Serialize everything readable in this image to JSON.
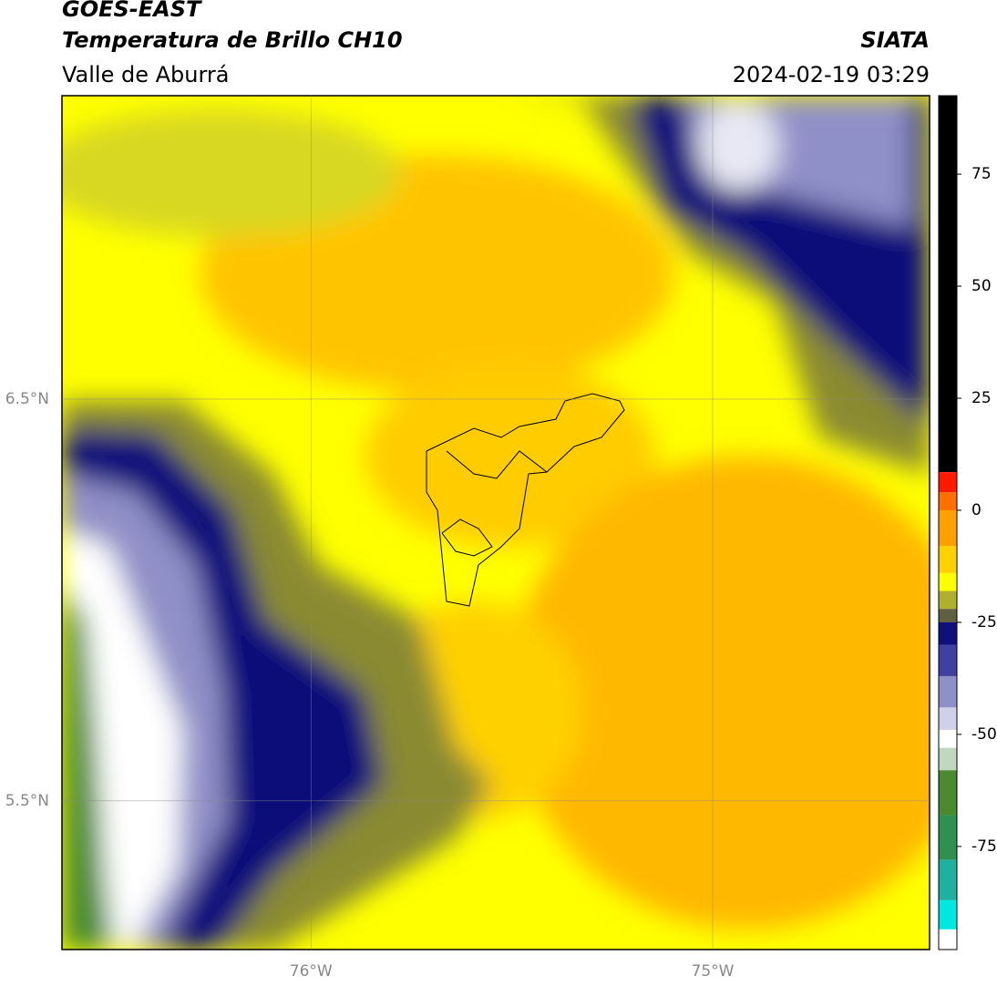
{
  "header": {
    "title": "GOES-EAST",
    "subtitle": "Temperatura de Brillo CH10",
    "region": "Valle de Aburrá",
    "source": "SIATA",
    "datetime": "2024-02-19 03:29"
  },
  "map": {
    "xlim": [
      -76.62,
      -74.46
    ],
    "ylim": [
      5.13,
      7.255
    ],
    "xticks": [
      {
        "value": -76,
        "label": "76°W"
      },
      {
        "value": -75,
        "label": "75°W"
      }
    ],
    "yticks": [
      {
        "value": 6.5,
        "label": "6.5°N"
      },
      {
        "value": 5.5,
        "label": "5.5°N"
      }
    ],
    "grid": true
  },
  "colorbar": {
    "ylim": [
      -98,
      92.5
    ],
    "ticks": [
      75,
      50,
      25,
      0,
      -25,
      -50,
      -75
    ],
    "bounds": [
      8.5,
      4,
      0,
      -8,
      -14,
      -18,
      -22,
      -25,
      -30,
      -37,
      -44,
      -49,
      -53,
      -58,
      -68,
      -78,
      -87,
      -93.5
    ],
    "colors": [
      "#000000",
      "#ff1a00",
      "#ff7000",
      "#ffa000",
      "#ffd000",
      "#ffff00",
      "#b0b030",
      "#606040",
      "#10107a",
      "#4040a0",
      "#9090c8",
      "#d0d0e8",
      "#ffffff",
      "#c0d8c0",
      "#4a8a30",
      "#309050",
      "#20b0a0",
      "#00e8e0",
      "#ffffff"
    ]
  }
}
